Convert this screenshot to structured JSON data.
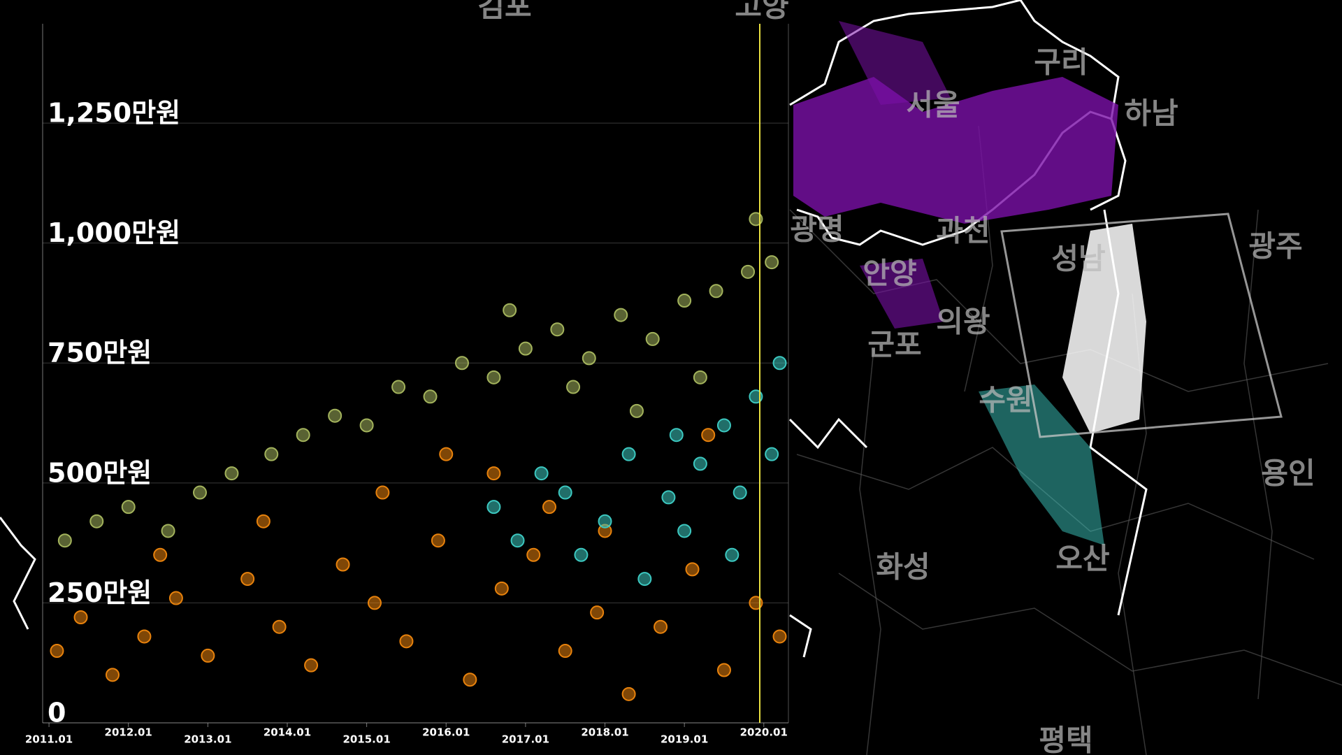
{
  "chart_data": {
    "type": "scatter",
    "xlim": [
      2010.92,
      2020.31
    ],
    "ylim": [
      0,
      1457
    ],
    "xticks": [
      {
        "value": 2011,
        "label": "2011.01"
      },
      {
        "value": 2012,
        "label": "2012.01"
      },
      {
        "value": 2013,
        "label": "2013.01"
      },
      {
        "value": 2014,
        "label": "2014.01"
      },
      {
        "value": 2015,
        "label": "2015.01"
      },
      {
        "value": 2016,
        "label": "2016.01"
      },
      {
        "value": 2017,
        "label": "2017.01"
      },
      {
        "value": 2018,
        "label": "2018.01"
      },
      {
        "value": 2019,
        "label": "2019.01"
      },
      {
        "value": 2020,
        "label": "2020.01"
      }
    ],
    "yticks": [
      0,
      {
        "value": 250,
        "label": "250만원"
      },
      {
        "value": 500,
        "label": "500만원"
      },
      {
        "value": 750,
        "label": "750만원"
      },
      {
        "value": 1000,
        "label": "1,000만원"
      },
      {
        "value": 1250,
        "label": "1,250만원"
      }
    ],
    "grid": true,
    "series": [
      {
        "color": "#e8820c",
        "x": [
          2011.1,
          2011.4,
          2011.8,
          2012.2,
          2012.6,
          2013.0,
          2013.5,
          2013.9,
          2014.3,
          2014.7,
          2015.1,
          2015.5,
          2015.9,
          2016.3,
          2016.7,
          2017.1,
          2017.5,
          2017.9,
          2018.3,
          2018.7,
          2019.1,
          2019.5,
          2019.9,
          2020.2,
          2012.4,
          2013.7,
          2015.2,
          2016.0,
          2016.6,
          2017.3,
          2018.0,
          2019.3
        ],
        "values": [
          150,
          220,
          100,
          180,
          260,
          140,
          300,
          200,
          120,
          330,
          250,
          170,
          380,
          90,
          280,
          350,
          150,
          230,
          60,
          200,
          320,
          110,
          250,
          180,
          350,
          420,
          480,
          560,
          520,
          450,
          400,
          600
        ]
      },
      {
        "color": "#a3b35c",
        "x": [
          2011.2,
          2011.6,
          2012.0,
          2012.5,
          2012.9,
          2013.3,
          2013.8,
          2014.2,
          2014.6,
          2015.0,
          2015.4,
          2015.8,
          2016.2,
          2016.6,
          2017.0,
          2017.4,
          2017.8,
          2018.2,
          2018.6,
          2019.0,
          2019.4,
          2019.8,
          2020.1,
          2017.6,
          2018.4,
          2019.2,
          2019.9,
          2016.8
        ],
        "values": [
          380,
          420,
          450,
          400,
          480,
          520,
          560,
          600,
          640,
          620,
          700,
          680,
          750,
          720,
          780,
          820,
          760,
          850,
          800,
          880,
          900,
          940,
          960,
          700,
          650,
          720,
          1050,
          860
        ]
      },
      {
        "color": "#3cc8c0",
        "x": [
          2016.6,
          2016.9,
          2017.2,
          2017.5,
          2017.7,
          2018.0,
          2018.3,
          2018.5,
          2018.8,
          2019.0,
          2019.2,
          2019.5,
          2019.7,
          2019.9,
          2020.1,
          2020.2,
          2019.6,
          2018.9
        ],
        "values": [
          450,
          380,
          520,
          480,
          350,
          420,
          560,
          300,
          470,
          400,
          540,
          620,
          480,
          680,
          560,
          750,
          350,
          600
        ]
      }
    ]
  },
  "map": {
    "labels": [
      "김포",
      "고양",
      "구리",
      "서울",
      "하남",
      "광명",
      "과천",
      "성남",
      "광주",
      "안양",
      "의왕",
      "군포",
      "수원",
      "용인",
      "화성",
      "오산",
      "평택"
    ]
  }
}
